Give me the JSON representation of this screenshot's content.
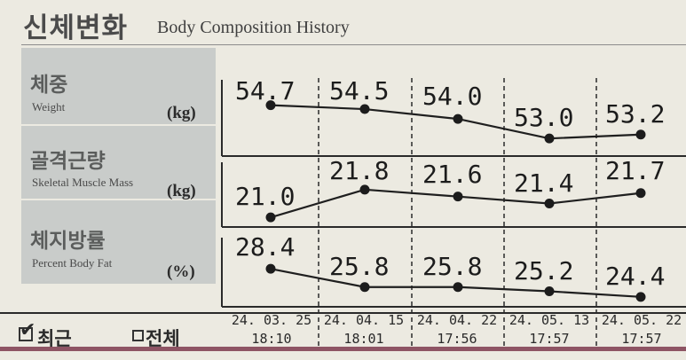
{
  "header": {
    "title_ko": "신체변화",
    "title_en": "Body Composition History"
  },
  "rows": [
    {
      "name_ko": "체중",
      "name_en": "Weight",
      "unit": "(kg)",
      "values": [
        "54.7",
        "54.5",
        "54.0",
        "53.0",
        "53.2"
      ]
    },
    {
      "name_ko": "골격근량",
      "name_en": "Skeletal Muscle Mass",
      "unit": "(kg)",
      "values": [
        "21.0",
        "21.8",
        "21.6",
        "21.4",
        "21.7"
      ]
    },
    {
      "name_ko": "체지방률",
      "name_en": "Percent Body Fat",
      "unit": "(%)",
      "values": [
        "28.4",
        "25.8",
        "25.8",
        "25.2",
        "24.4"
      ]
    }
  ],
  "dates": [
    {
      "date": "24. 03. 25",
      "time": "18:10"
    },
    {
      "date": "24. 04. 15",
      "time": "18:01"
    },
    {
      "date": "24. 04. 22",
      "time": "17:56"
    },
    {
      "date": "24. 05. 13",
      "time": "17:57"
    },
    {
      "date": "24. 05. 22",
      "time": "17:57"
    }
  ],
  "footer": {
    "tab_recent": "최근",
    "tab_all": "전체",
    "recent_checked": true
  },
  "chart_data": {
    "type": "line",
    "categories": [
      "24.03.25 18:10",
      "24.04.15 18:01",
      "24.04.22 17:56",
      "24.05.13 17:57",
      "24.05.22 17:57"
    ],
    "series": [
      {
        "name": "Weight",
        "values": [
          54.7,
          54.5,
          54.0,
          53.0,
          53.2
        ]
      },
      {
        "name": "Skeletal Muscle Mass",
        "values": [
          21.0,
          21.8,
          21.6,
          21.4,
          21.7
        ]
      },
      {
        "name": "Percent Body Fat",
        "values": [
          28.4,
          25.8,
          25.8,
          25.2,
          24.4
        ]
      }
    ]
  }
}
